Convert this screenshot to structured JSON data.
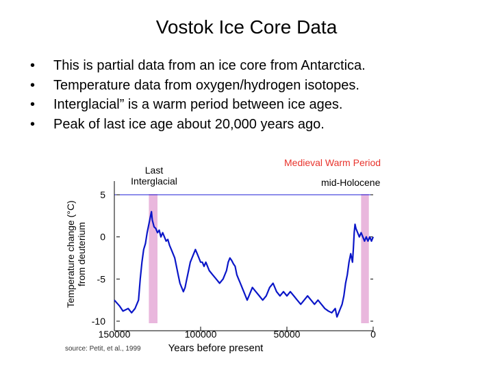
{
  "slide": {
    "title": "Vostok Ice Core Data",
    "bullet_marker": "•",
    "bullets": [
      "This is partial data from an ice core from Antarctica.",
      "Temperature data from oxygen/hydrogen isotopes.",
      "Interglacial” is a warm period between ice ages.",
      "Peak of last ice age about 20,000 years ago."
    ]
  },
  "colors": {
    "series": "#0a16c8",
    "axis": "#000000",
    "highlight_band": "#e9b7dd",
    "annotation_red": "#e8322b",
    "frame": "#1b1bd6"
  },
  "chart_data": {
    "type": "line",
    "title": "",
    "xlabel": "Years before present",
    "ylabel_line1": "Temperature change (°C)",
    "ylabel_line2": "from deuterium",
    "x_reversed": true,
    "xlim": [
      150000,
      0
    ],
    "ylim": [
      -10,
      6
    ],
    "x_ticks": [
      150000,
      100000,
      50000,
      0
    ],
    "x_tick_labels": [
      "150000",
      "100000",
      "50000",
      "0"
    ],
    "y_ticks": [
      5,
      0,
      -5,
      -10
    ],
    "y_tick_labels": [
      "5",
      "0",
      "-5",
      "-10"
    ],
    "grid": false,
    "bands": [
      {
        "label": "Last Interglacial",
        "x_from": 130000,
        "x_to": 125000
      },
      {
        "label": "mid-Holocene",
        "x_from": 7000,
        "x_to": 2500
      }
    ],
    "annotations": {
      "medieval": "Medieval Warm Period",
      "interglacial_line1": "Last",
      "interglacial_line2": "Interglacial",
      "holocene": "mid-Holocene",
      "source": "source: Petit, et al., 1999"
    },
    "series": [
      {
        "values": [
          {
            "x": 150000,
            "y": -7.5
          },
          {
            "x": 147000,
            "y": -8.2
          },
          {
            "x": 145000,
            "y": -8.8
          },
          {
            "x": 142000,
            "y": -8.5
          },
          {
            "x": 140000,
            "y": -9.0
          },
          {
            "x": 138000,
            "y": -8.5
          },
          {
            "x": 136000,
            "y": -7.5
          },
          {
            "x": 135000,
            "y": -5.0
          },
          {
            "x": 134000,
            "y": -3.0
          },
          {
            "x": 133000,
            "y": -1.5
          },
          {
            "x": 132000,
            "y": -0.8
          },
          {
            "x": 131000,
            "y": 0.5
          },
          {
            "x": 130000,
            "y": 1.5
          },
          {
            "x": 129000,
            "y": 2.5
          },
          {
            "x": 128500,
            "y": 3.0
          },
          {
            "x": 128000,
            "y": 2.0
          },
          {
            "x": 127000,
            "y": 1.2
          },
          {
            "x": 126000,
            "y": 1.0
          },
          {
            "x": 125000,
            "y": 0.5
          },
          {
            "x": 124000,
            "y": 0.8
          },
          {
            "x": 123000,
            "y": 0.0
          },
          {
            "x": 122000,
            "y": 0.5
          },
          {
            "x": 121000,
            "y": 0.0
          },
          {
            "x": 120000,
            "y": -0.5
          },
          {
            "x": 119000,
            "y": -0.3
          },
          {
            "x": 118000,
            "y": -1.0
          },
          {
            "x": 117000,
            "y": -1.5
          },
          {
            "x": 116000,
            "y": -2.0
          },
          {
            "x": 115000,
            "y": -2.5
          },
          {
            "x": 114000,
            "y": -3.5
          },
          {
            "x": 113000,
            "y": -4.5
          },
          {
            "x": 112000,
            "y": -5.5
          },
          {
            "x": 111000,
            "y": -6.0
          },
          {
            "x": 110000,
            "y": -6.5
          },
          {
            "x": 109000,
            "y": -6.0
          },
          {
            "x": 108000,
            "y": -5.0
          },
          {
            "x": 107000,
            "y": -4.0
          },
          {
            "x": 106000,
            "y": -3.0
          },
          {
            "x": 105000,
            "y": -2.5
          },
          {
            "x": 104000,
            "y": -2.0
          },
          {
            "x": 103000,
            "y": -1.5
          },
          {
            "x": 102000,
            "y": -2.0
          },
          {
            "x": 101000,
            "y": -2.5
          },
          {
            "x": 100000,
            "y": -3.0
          },
          {
            "x": 99000,
            "y": -3.0
          },
          {
            "x": 98000,
            "y": -3.5
          },
          {
            "x": 97000,
            "y": -3.0
          },
          {
            "x": 96000,
            "y": -3.5
          },
          {
            "x": 95000,
            "y": -4.0
          },
          {
            "x": 93000,
            "y": -4.5
          },
          {
            "x": 91000,
            "y": -5.0
          },
          {
            "x": 89000,
            "y": -5.5
          },
          {
            "x": 87000,
            "y": -5.0
          },
          {
            "x": 85000,
            "y": -4.0
          },
          {
            "x": 84000,
            "y": -3.0
          },
          {
            "x": 83000,
            "y": -2.5
          },
          {
            "x": 82000,
            "y": -2.8
          },
          {
            "x": 81000,
            "y": -3.2
          },
          {
            "x": 80000,
            "y": -3.5
          },
          {
            "x": 79000,
            "y": -4.5
          },
          {
            "x": 78000,
            "y": -5.0
          },
          {
            "x": 77000,
            "y": -5.5
          },
          {
            "x": 76000,
            "y": -6.0
          },
          {
            "x": 75000,
            "y": -6.5
          },
          {
            "x": 74000,
            "y": -7.0
          },
          {
            "x": 73000,
            "y": -7.5
          },
          {
            "x": 72000,
            "y": -7.0
          },
          {
            "x": 71000,
            "y": -6.5
          },
          {
            "x": 70000,
            "y": -6.0
          },
          {
            "x": 68000,
            "y": -6.5
          },
          {
            "x": 66000,
            "y": -7.0
          },
          {
            "x": 64000,
            "y": -7.5
          },
          {
            "x": 62000,
            "y": -7.0
          },
          {
            "x": 60000,
            "y": -6.0
          },
          {
            "x": 58000,
            "y": -5.5
          },
          {
            "x": 56000,
            "y": -6.5
          },
          {
            "x": 54000,
            "y": -7.0
          },
          {
            "x": 52000,
            "y": -6.5
          },
          {
            "x": 50000,
            "y": -7.0
          },
          {
            "x": 48000,
            "y": -6.5
          },
          {
            "x": 46000,
            "y": -7.0
          },
          {
            "x": 44000,
            "y": -7.5
          },
          {
            "x": 42000,
            "y": -8.0
          },
          {
            "x": 40000,
            "y": -7.5
          },
          {
            "x": 38000,
            "y": -7.0
          },
          {
            "x": 36000,
            "y": -7.5
          },
          {
            "x": 34000,
            "y": -8.0
          },
          {
            "x": 32000,
            "y": -7.5
          },
          {
            "x": 30000,
            "y": -8.0
          },
          {
            "x": 28000,
            "y": -8.5
          },
          {
            "x": 26000,
            "y": -8.8
          },
          {
            "x": 24000,
            "y": -9.0
          },
          {
            "x": 22000,
            "y": -8.5
          },
          {
            "x": 21000,
            "y": -9.5
          },
          {
            "x": 20000,
            "y": -9.0
          },
          {
            "x": 19000,
            "y": -8.5
          },
          {
            "x": 18000,
            "y": -8.0
          },
          {
            "x": 17000,
            "y": -7.0
          },
          {
            "x": 16000,
            "y": -5.5
          },
          {
            "x": 15000,
            "y": -4.5
          },
          {
            "x": 14000,
            "y": -3.0
          },
          {
            "x": 13000,
            "y": -2.0
          },
          {
            "x": 12500,
            "y": -2.5
          },
          {
            "x": 12000,
            "y": -3.0
          },
          {
            "x": 11500,
            "y": -1.5
          },
          {
            "x": 11000,
            "y": 0.5
          },
          {
            "x": 10500,
            "y": 1.5
          },
          {
            "x": 10000,
            "y": 1.0
          },
          {
            "x": 9000,
            "y": 0.5
          },
          {
            "x": 8000,
            "y": 0.0
          },
          {
            "x": 7000,
            "y": 0.5
          },
          {
            "x": 6000,
            "y": 0.0
          },
          {
            "x": 5000,
            "y": -0.5
          },
          {
            "x": 4000,
            "y": 0.0
          },
          {
            "x": 3000,
            "y": -0.5
          },
          {
            "x": 2000,
            "y": 0.0
          },
          {
            "x": 1000,
            "y": -0.5
          },
          {
            "x": 0,
            "y": 0.0
          }
        ]
      }
    ]
  }
}
